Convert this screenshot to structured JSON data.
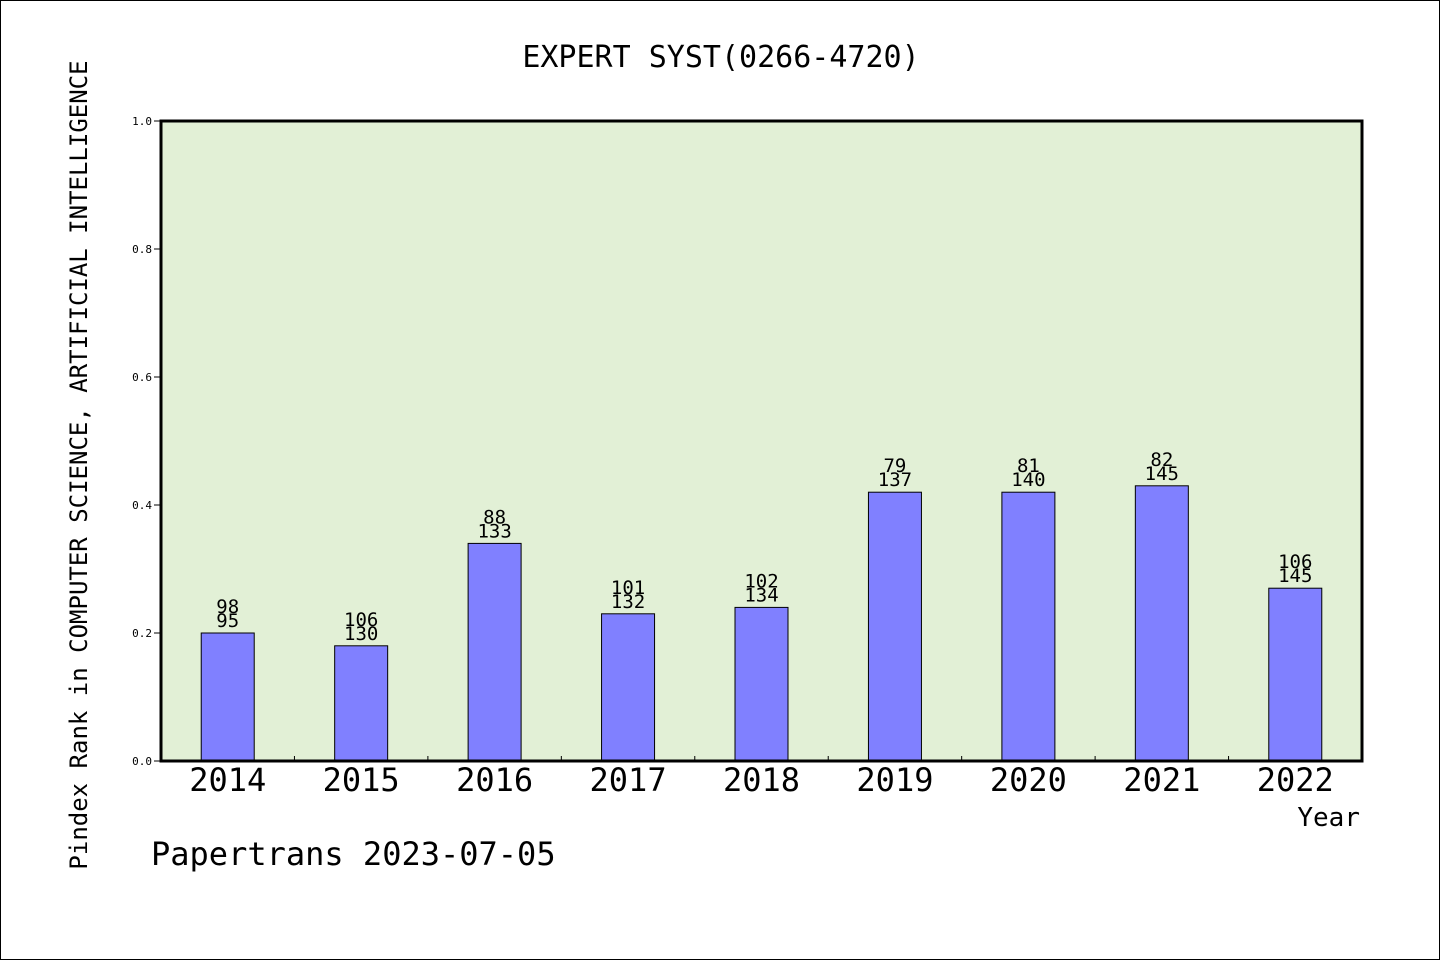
{
  "chart_data": {
    "type": "bar",
    "title": "EXPERT SYST(0266-4720)",
    "ylabel": "Pindex Rank in COMPUTER SCIENCE, ARTIFICIAL INTELLIGENCE",
    "xlabel": "Year",
    "footer": "Papertrans 2023-07-05",
    "categories": [
      "2014",
      "2015",
      "2016",
      "2017",
      "2018",
      "2019",
      "2020",
      "2021",
      "2022"
    ],
    "values": [
      0.2,
      0.18,
      0.34,
      0.23,
      0.24,
      0.42,
      0.42,
      0.43,
      0.27
    ],
    "labels_top": [
      "98",
      "106",
      "88",
      "101",
      "102",
      "79",
      "81",
      "82",
      "106"
    ],
    "labels_bottom": [
      "95",
      "130",
      "133",
      "132",
      "134",
      "137",
      "140",
      "145",
      "145"
    ],
    "ylim": [
      0,
      1.0
    ],
    "yticks": [
      "0.0",
      "0.2",
      "0.4",
      "0.6",
      "0.8",
      "1.0"
    ],
    "grid": false,
    "colors": {
      "bar": "#8080ff",
      "plot_background": "#e2f0d6",
      "axis": "#000000"
    }
  }
}
